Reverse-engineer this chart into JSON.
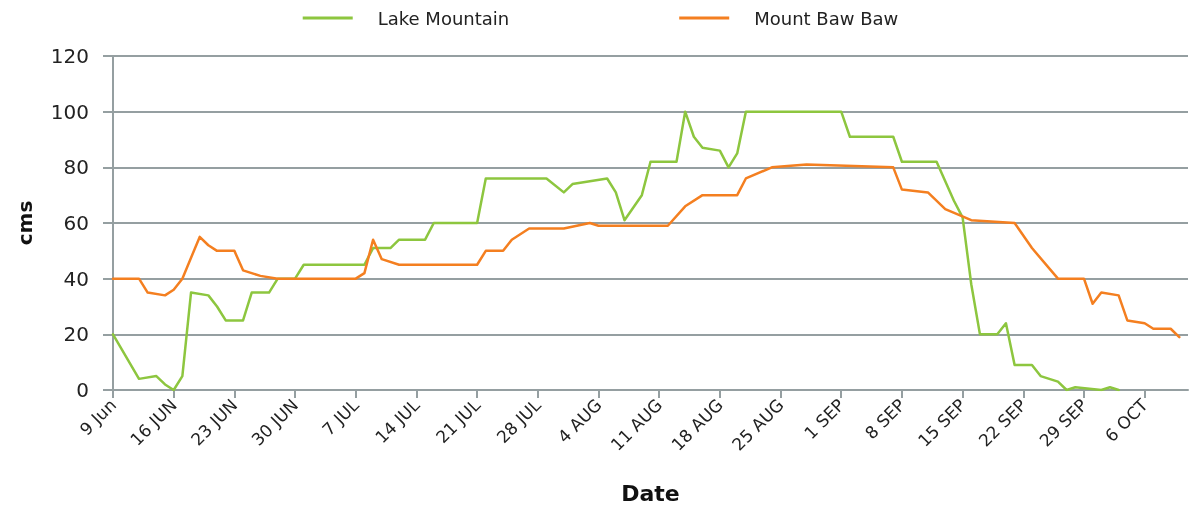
{
  "chart_data": {
    "type": "line",
    "xlabel": "Date",
    "ylabel": "cms",
    "xlim": [
      "--06-09",
      "--10-11"
    ],
    "xticks": [
      {
        "value": "--06-09",
        "label": "9 Jun"
      },
      {
        "value": "--06-16",
        "label": "16 JUN"
      },
      {
        "value": "--06-23",
        "label": "23 JUN"
      },
      {
        "value": "--06-30",
        "label": "30 JUN"
      },
      {
        "value": "--07-07",
        "label": "7 JUL"
      },
      {
        "value": "--07-14",
        "label": "14 JUL"
      },
      {
        "value": "--07-21",
        "label": "21 JUL"
      },
      {
        "value": "--07-28",
        "label": "28 JUL"
      },
      {
        "value": "--08-04",
        "label": "4 AUG"
      },
      {
        "value": "--08-11",
        "label": "11 AUG"
      },
      {
        "value": "--08-18",
        "label": "18 AUG"
      },
      {
        "value": "--08-25",
        "label": "25 AUG"
      },
      {
        "value": "--09-01",
        "label": "1 SEP"
      },
      {
        "value": "--09-08",
        "label": "8 SEP"
      },
      {
        "value": "--09-15",
        "label": "15 SEP"
      },
      {
        "value": "--09-22",
        "label": "22 SEP"
      },
      {
        "value": "--09-29",
        "label": "29 SEP"
      },
      {
        "value": "--10-06",
        "label": "6 OCT"
      }
    ],
    "ylim": [
      0,
      120
    ],
    "yticks": [
      0,
      20,
      40,
      60,
      80,
      100,
      120
    ],
    "grid": "y",
    "legend": "top",
    "marker": "none",
    "line_style": "solid",
    "series": [
      {
        "name": "Lake Mountain",
        "color": "#8dc63f",
        "x": [
          "--06-09",
          "--06-12",
          "--06-14",
          "--06-15",
          "--06-16",
          "--06-17",
          "--06-18",
          "--06-20",
          "--06-21",
          "--06-22",
          "--06-24",
          "--06-25",
          "--06-27",
          "--06-28",
          "--06-30",
          "--07-01",
          "--07-08",
          "--07-09",
          "--07-11",
          "--07-12",
          "--07-15",
          "--07-16",
          "--07-21",
          "--07-22",
          "--07-29",
          "--07-31",
          "--08-01",
          "--08-05",
          "--08-06",
          "--08-07",
          "--08-09",
          "--08-10",
          "--08-13",
          "--08-14",
          "--08-15",
          "--08-16",
          "--08-18",
          "--08-19",
          "--08-20",
          "--08-21",
          "--09-01",
          "--09-02",
          "--09-07",
          "--09-08",
          "--09-12",
          "--09-14",
          "--09-15",
          "--09-16",
          "--09-17",
          "--09-19",
          "--09-20",
          "--09-21",
          "--09-23",
          "--09-24",
          "--09-26",
          "--09-27",
          "--09-28",
          "--10-01",
          "--10-02",
          "--10-03"
        ],
        "values": [
          20,
          4,
          5,
          2,
          0,
          5,
          35,
          34,
          30,
          25,
          25,
          35,
          35,
          40,
          40,
          45,
          45,
          51,
          51,
          54,
          54,
          60,
          60,
          76,
          76,
          71,
          74,
          76,
          71,
          61,
          70,
          82,
          82,
          100,
          91,
          87,
          86,
          80,
          85,
          100,
          100,
          91,
          91,
          82,
          82,
          68,
          62,
          38,
          20,
          20,
          24,
          9,
          9,
          5,
          3,
          0,
          1,
          0,
          1,
          0
        ]
      },
      {
        "name": "Mount Baw Baw",
        "color": "#f47f20",
        "x": [
          "--06-09",
          "--06-12",
          "--06-13",
          "--06-15",
          "--06-16",
          "--06-17",
          "--06-19",
          "--06-20",
          "--06-21",
          "--06-23",
          "--06-24",
          "--06-26",
          "--06-28",
          "--07-07",
          "--07-08",
          "--07-09",
          "--07-10",
          "--07-12",
          "--07-15",
          "--07-21",
          "--07-22",
          "--07-24",
          "--07-25",
          "--07-27",
          "--07-31",
          "--08-03",
          "--08-04",
          "--08-12",
          "--08-14",
          "--08-16",
          "--08-20",
          "--08-21",
          "--08-24",
          "--08-28",
          "--09-07",
          "--09-08",
          "--09-11",
          "--09-13",
          "--09-16",
          "--09-21",
          "--09-23",
          "--09-26",
          "--09-29",
          "--09-30",
          "--10-01",
          "--10-03",
          "--10-04",
          "--10-06",
          "--10-07",
          "--10-09",
          "--10-10"
        ],
        "values": [
          40,
          40,
          35,
          34,
          36,
          40,
          55,
          52,
          50,
          50,
          43,
          41,
          40,
          40,
          42,
          54,
          47,
          45,
          45,
          45,
          50,
          50,
          54,
          58,
          58,
          60,
          59,
          59,
          66,
          70,
          70,
          76,
          80,
          81,
          80,
          72,
          71,
          65,
          61,
          60,
          51,
          40,
          40,
          31,
          35,
          34,
          25,
          24,
          22,
          22,
          19
        ]
      }
    ]
  }
}
